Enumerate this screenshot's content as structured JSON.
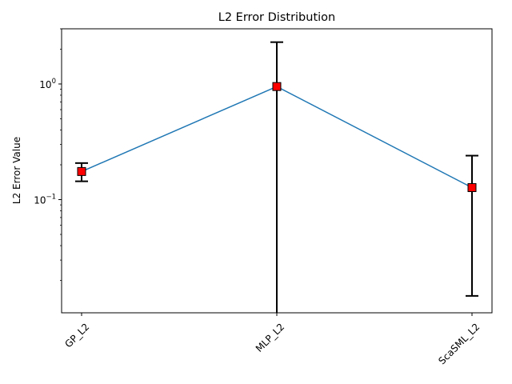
{
  "chart_data": {
    "type": "line",
    "title": "L2 Error Distribution",
    "xlabel": "",
    "ylabel": "L2 Error Value",
    "yscale": "log",
    "ylim": [
      0.0105,
      3.0
    ],
    "categories": [
      "GP_L2",
      "MLP_L2",
      "ScaSML_L2"
    ],
    "series": [
      {
        "values": [
          0.175,
          0.95,
          0.127
        ],
        "error_low": [
          0.144,
          0.0105,
          0.0147
        ],
        "error_high": [
          0.207,
          2.3,
          0.24
        ]
      }
    ],
    "y_ticks": [
      {
        "base": "10",
        "exp": "0",
        "value": 1
      },
      {
        "base": "10",
        "exp": "−1",
        "value": 0.1
      }
    ],
    "grid": false,
    "legend": "none",
    "colors": {
      "line": "#1f77b4",
      "marker_fill": "#ff0000",
      "marker_edge": "#000000",
      "errorbar": "#000000"
    }
  }
}
